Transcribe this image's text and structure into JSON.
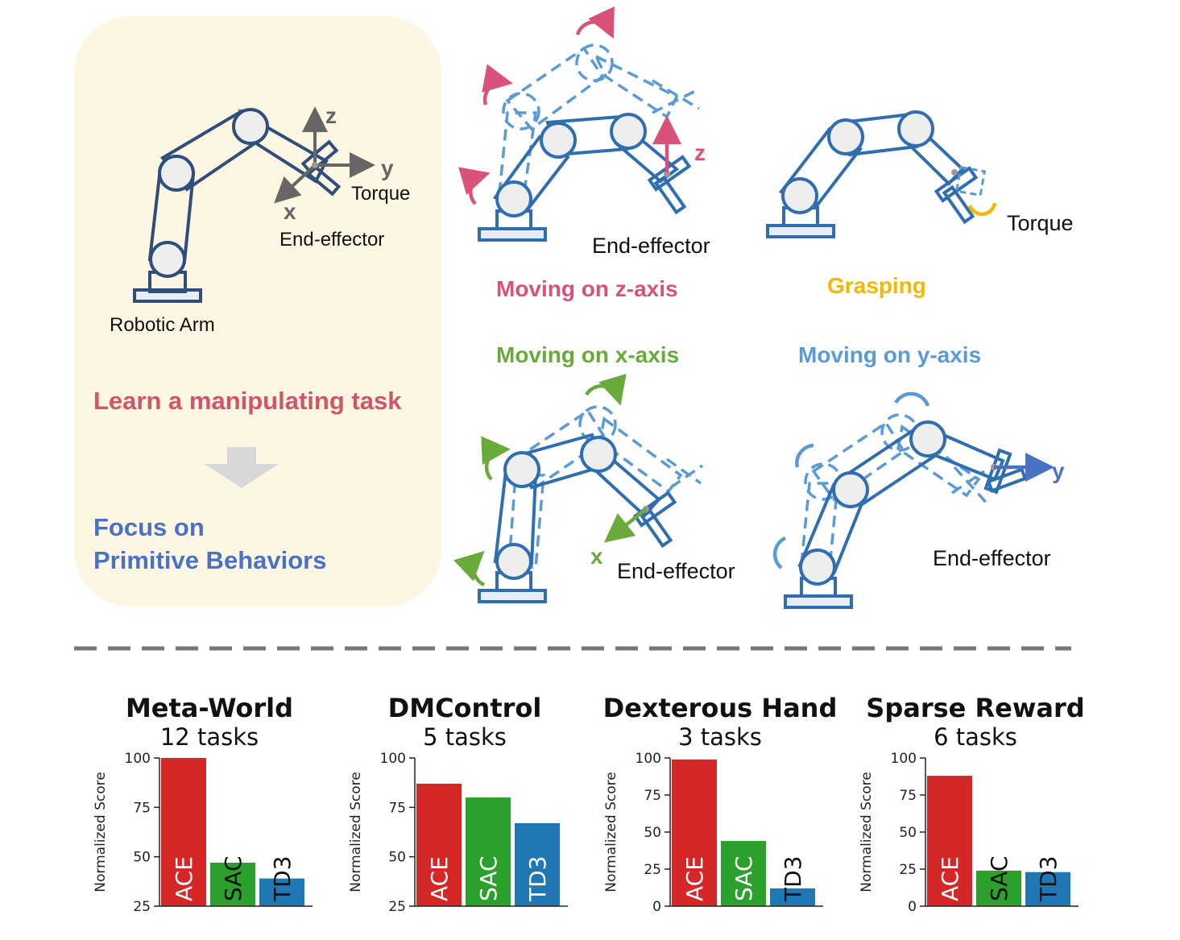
{
  "left_panel": {
    "robotic_arm_label": "Robotic Arm",
    "end_effector_label": "End-effector",
    "torque_label": "Torque",
    "axis_z": "z",
    "axis_y": "y",
    "axis_x": "x",
    "task_text": "Learn a manipulating task",
    "focus_line1": "Focus on",
    "focus_line2": "Primitive Behaviors"
  },
  "behaviors": {
    "z_axis": {
      "title": "Moving on z-axis",
      "effector_label": "End-effector",
      "axis": "z",
      "color": "#d9527a"
    },
    "grasping": {
      "title": "Grasping",
      "torque_label": "Torque",
      "color": "#f5b800"
    },
    "x_axis": {
      "title": "Moving on x-axis",
      "effector_label": "End-effector",
      "axis": "x",
      "color": "#6aaa3a"
    },
    "y_axis": {
      "title": "Moving on y-axis",
      "effector_label": "End-effector",
      "axis": "y",
      "color": "#5b9bd5"
    }
  },
  "colors": {
    "arm": "#2f6eb0",
    "arm_dashed": "#5b9bd5",
    "task_red": "#d0556a",
    "focus_blue": "#4a72c4",
    "panel_bg": "#fdf6e3",
    "ace": "#d62728",
    "sac": "#2ca02c",
    "td3": "#1f77b4"
  },
  "chart_data": [
    {
      "type": "bar",
      "title": "Meta-World",
      "subtitle": "12 tasks",
      "ylabel": "Normalized Score",
      "categories": [
        "ACE",
        "SAC",
        "TD3"
      ],
      "values": [
        100,
        47,
        39
      ],
      "ylim": [
        25,
        100
      ],
      "yticks": [
        25,
        50,
        75,
        100
      ]
    },
    {
      "type": "bar",
      "title": "DMControl",
      "subtitle": "5 tasks",
      "ylabel": "Normalized Score",
      "categories": [
        "ACE",
        "SAC",
        "TD3"
      ],
      "values": [
        87,
        80,
        67
      ],
      "ylim": [
        25,
        100
      ],
      "yticks": [
        25,
        50,
        75,
        100
      ]
    },
    {
      "type": "bar",
      "title": "Dexterous Hand",
      "subtitle": "3 tasks",
      "ylabel": "Normalized Score",
      "categories": [
        "ACE",
        "SAC",
        "TD3"
      ],
      "values": [
        99,
        44,
        12
      ],
      "ylim": [
        0,
        100
      ],
      "yticks": [
        0,
        25,
        50,
        75,
        100
      ]
    },
    {
      "type": "bar",
      "title": "Sparse Reward",
      "subtitle": "6 tasks",
      "ylabel": "Normalized Score",
      "categories": [
        "ACE",
        "SAC",
        "TD3"
      ],
      "values": [
        88,
        24,
        23
      ],
      "ylim": [
        0,
        100
      ],
      "yticks": [
        0,
        25,
        50,
        75,
        100
      ]
    }
  ]
}
